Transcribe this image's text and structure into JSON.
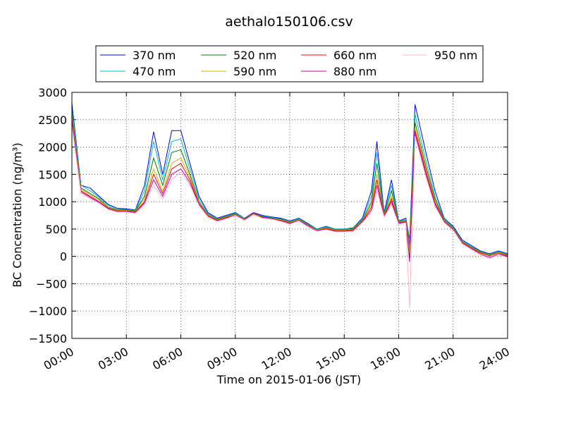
{
  "chart_data": {
    "type": "line",
    "title": "aethalo150106.csv",
    "xlabel": "Time on 2015-01-06 (JST)",
    "ylabel": "BC Concentration (ng/m³)",
    "x": [
      0,
      0.5,
      1,
      1.5,
      2,
      2.5,
      3,
      3.5,
      4,
      4.5,
      5,
      5.5,
      6,
      6.5,
      7,
      7.5,
      8,
      8.5,
      9,
      9.5,
      10,
      10.5,
      11,
      11.5,
      12,
      12.5,
      13,
      13.5,
      14,
      14.5,
      15,
      15.5,
      16,
      16.5,
      16.8,
      17.2,
      17.6,
      18,
      18.4,
      18.6,
      18.9,
      19.5,
      20,
      20.5,
      21,
      21.5,
      22,
      22.5,
      23,
      23.5,
      24
    ],
    "xlim": [
      0,
      24
    ],
    "xticks": [
      {
        "value": 0,
        "label": "00:00"
      },
      {
        "value": 3,
        "label": "03:00"
      },
      {
        "value": 6,
        "label": "06:00"
      },
      {
        "value": 9,
        "label": "09:00"
      },
      {
        "value": 12,
        "label": "12:00"
      },
      {
        "value": 15,
        "label": "15:00"
      },
      {
        "value": 18,
        "label": "18:00"
      },
      {
        "value": 21,
        "label": "21:00"
      },
      {
        "value": 24,
        "label": "24:00"
      }
    ],
    "ylim": [
      -1500,
      3000
    ],
    "yticks": [
      {
        "value": -1500,
        "label": "−1500"
      },
      {
        "value": -1000,
        "label": "−1000"
      },
      {
        "value": -500,
        "label": "−500"
      },
      0,
      500,
      1000,
      1500,
      2000,
      2500,
      3000
    ],
    "grid": true,
    "legend": "top",
    "series": [
      {
        "name": "370 nm",
        "color": "#0000ff",
        "values": [
          2800,
          1300,
          1250,
          1100,
          950,
          880,
          870,
          850,
          1300,
          2280,
          1500,
          2300,
          2300,
          1700,
          1100,
          800,
          700,
          750,
          800,
          700,
          800,
          750,
          720,
          700,
          650,
          700,
          600,
          500,
          550,
          500,
          500,
          520,
          700,
          1200,
          2100,
          800,
          1400,
          650,
          700,
          300,
          2780,
          1900,
          1200,
          700,
          550,
          300,
          200,
          100,
          50,
          100,
          50
        ]
      },
      {
        "name": "470 nm",
        "color": "#00bfbf",
        "values": [
          2700,
          1300,
          1200,
          1080,
          930,
          860,
          860,
          840,
          1200,
          2100,
          1400,
          2100,
          2150,
          1600,
          1050,
          780,
          690,
          740,
          790,
          700,
          790,
          740,
          710,
          690,
          640,
          690,
          590,
          500,
          540,
          500,
          500,
          510,
          680,
          1100,
          1900,
          780,
          1300,
          640,
          680,
          250,
          2600,
          1750,
          1100,
          680,
          530,
          280,
          180,
          90,
          40,
          90,
          40
        ]
      },
      {
        "name": "520 nm",
        "color": "#008000",
        "values": [
          2600,
          1250,
          1150,
          1050,
          900,
          850,
          850,
          830,
          1100,
          1800,
          1300,
          1900,
          1950,
          1500,
          1000,
          760,
          680,
          730,
          780,
          690,
          780,
          730,
          700,
          680,
          630,
          680,
          580,
          490,
          530,
          490,
          490,
          500,
          660,
          1000,
          1700,
          760,
          1200,
          630,
          660,
          200,
          2450,
          1650,
          1050,
          660,
          520,
          270,
          170,
          80,
          30,
          80,
          30
        ]
      },
      {
        "name": "590 nm",
        "color": "#dcb000",
        "values": [
          2550,
          1230,
          1130,
          1030,
          890,
          840,
          840,
          820,
          1050,
          1600,
          1200,
          1700,
          1800,
          1450,
          980,
          750,
          670,
          720,
          770,
          680,
          770,
          720,
          690,
          670,
          620,
          670,
          570,
          480,
          520,
          480,
          480,
          490,
          650,
          950,
          1500,
          750,
          1100,
          620,
          650,
          100,
          2350,
          1600,
          1000,
          650,
          510,
          260,
          160,
          70,
          20,
          70,
          20
        ]
      },
      {
        "name": "660 nm",
        "color": "#ff0000",
        "values": [
          2500,
          1200,
          1100,
          1000,
          880,
          830,
          830,
          810,
          1000,
          1500,
          1150,
          1600,
          1700,
          1400,
          960,
          740,
          660,
          710,
          760,
          670,
          760,
          710,
          680,
          660,
          610,
          660,
          560,
          470,
          510,
          470,
          470,
          480,
          640,
          900,
          1400,
          740,
          1050,
          610,
          640,
          -50,
          2300,
          1550,
          980,
          640,
          500,
          250,
          150,
          60,
          10,
          60,
          10
        ]
      },
      {
        "name": "880 nm",
        "color": "#bf00bf",
        "values": [
          2450,
          1180,
          1080,
          990,
          870,
          820,
          820,
          800,
          980,
          1400,
          1100,
          1500,
          1600,
          1350,
          950,
          730,
          650,
          700,
          760,
          670,
          800,
          720,
          690,
          650,
          600,
          660,
          560,
          470,
          500,
          460,
          460,
          470,
          630,
          850,
          1300,
          730,
          1000,
          600,
          630,
          -100,
          2250,
          1500,
          950,
          630,
          490,
          240,
          140,
          40,
          -20,
          40,
          0
        ]
      },
      {
        "name": "950 nm",
        "color": "#ffb6c1",
        "values": [
          2400,
          1150,
          1060,
          970,
          860,
          810,
          810,
          790,
          950,
          1300,
          1050,
          1400,
          1550,
          1300,
          930,
          720,
          640,
          690,
          750,
          660,
          760,
          700,
          680,
          640,
          590,
          650,
          540,
          460,
          490,
          450,
          450,
          460,
          620,
          800,
          1200,
          720,
          950,
          590,
          600,
          -950,
          2200,
          1450,
          920,
          620,
          480,
          230,
          130,
          30,
          -40,
          30,
          -20
        ]
      }
    ]
  }
}
